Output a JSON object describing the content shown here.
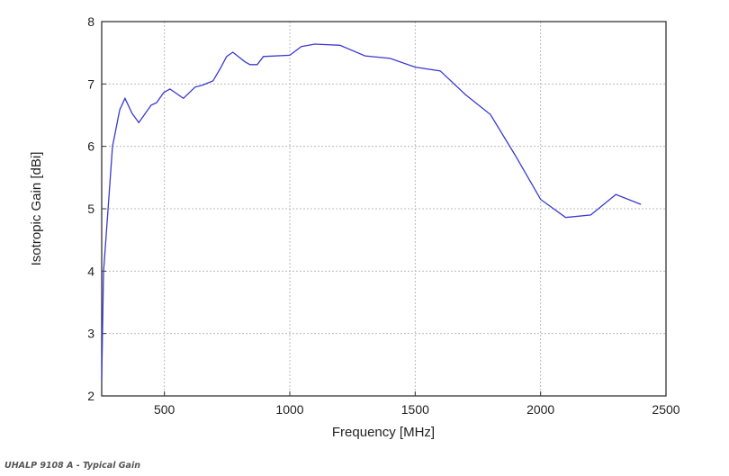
{
  "caption": "UHALP 9108 A - Typical Gain",
  "chart_data": {
    "type": "line",
    "title": "",
    "xlabel": "Frequency [MHz]",
    "ylabel": "Isotropic Gain [dBi]",
    "xlim": [
      250,
      2500
    ],
    "ylim": [
      2,
      8
    ],
    "xticks": [
      500,
      1000,
      1500,
      2000,
      2500
    ],
    "yticks": [
      2,
      3,
      4,
      5,
      6,
      7,
      8
    ],
    "grid": true,
    "line_color": "#3a3ad0",
    "series": [
      {
        "name": "Gain",
        "x": [
          250,
          257,
          275,
          293,
          322,
          343,
          371,
          398,
          447,
          469,
          497,
          522,
          576,
          622,
          651,
          694,
          723,
          748,
          773,
          820,
          841,
          870,
          895,
          1000,
          1046,
          1100,
          1200,
          1300,
          1400,
          1500,
          1600,
          1700,
          1800,
          1900,
          2000,
          2100,
          2200,
          2300,
          2400
        ],
        "y": [
          2.26,
          3.98,
          4.98,
          6.0,
          6.59,
          6.77,
          6.53,
          6.38,
          6.66,
          6.7,
          6.86,
          6.92,
          6.77,
          6.95,
          6.98,
          7.05,
          7.25,
          7.44,
          7.51,
          7.36,
          7.31,
          7.31,
          7.44,
          7.46,
          7.6,
          7.64,
          7.62,
          7.45,
          7.41,
          7.27,
          7.21,
          6.83,
          6.51,
          5.85,
          5.15,
          4.86,
          4.9,
          5.23,
          5.07
        ]
      }
    ]
  }
}
